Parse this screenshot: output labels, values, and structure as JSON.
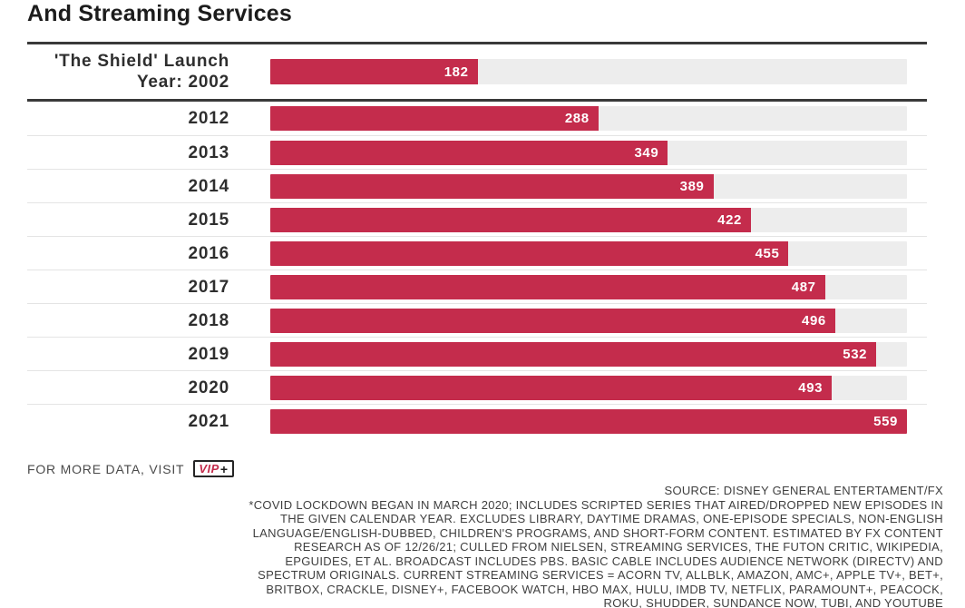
{
  "title": "And Streaming Services",
  "chart_data": {
    "type": "bar",
    "orientation": "horizontal",
    "title": "And Streaming Services",
    "categories": [
      "'The Shield' Launch Year: 2002",
      "2012",
      "2013",
      "2014",
      "2015",
      "2016",
      "2017",
      "2018",
      "2019",
      "2020",
      "2021"
    ],
    "values": [
      182,
      288,
      349,
      389,
      422,
      455,
      487,
      496,
      532,
      493,
      559
    ],
    "xlim": [
      0,
      559
    ],
    "bar_color": "#c42c4c",
    "track_color": "#ededed",
    "value_labels": "inside-right",
    "grid": false,
    "legend": false
  },
  "footer": {
    "more_data_text": "FOR MORE DATA, VISIT",
    "vip_badge": {
      "vip": "VIP",
      "plus": "+"
    },
    "note_lines": [
      "SOURCE: DISNEY GENERAL ENTERTAMENT/FX",
      "*COVID LOCKDOWN BEGAN IN MARCH 2020; INCLUDES SCRIPTED SERIES THAT AIRED/DROPPED NEW EPISODES IN",
      "THE GIVEN CALENDAR YEAR. EXCLUDES LIBRARY, DAYTIME DRAMAS, ONE-EPISODE SPECIALS, NON-ENGLISH",
      "LANGUAGE/ENGLISH-DUBBED, CHILDREN'S PROGRAMS, AND SHORT-FORM CONTENT. ESTIMATED BY FX CONTENT",
      "RESEARCH AS OF 12/26/21; CULLED FROM NIELSEN, STREAMING SERVICES, THE FUTON CRITIC, WIKIPEDIA,",
      "EPGUIDES, ET AL. BROADCAST INCLUDES PBS. BASIC CABLE INCLUDES AUDIENCE NETWORK (DIRECTV) AND",
      "SPECTRUM ORIGINALS. CURRENT STREAMING SERVICES = ACORN TV, ALLBLK, AMAZON, AMC+, APPLE TV+, BET+,",
      "BRITBOX, CRACKLE, DISNEY+, FACEBOOK WATCH, HBO MAX, HULU, IMDB TV, NETFLIX, PARAMOUNT+, PEACOCK,",
      "ROKU, SHUDDER, SUNDANCE NOW, TUBI, AND YOUTUBE"
    ]
  }
}
